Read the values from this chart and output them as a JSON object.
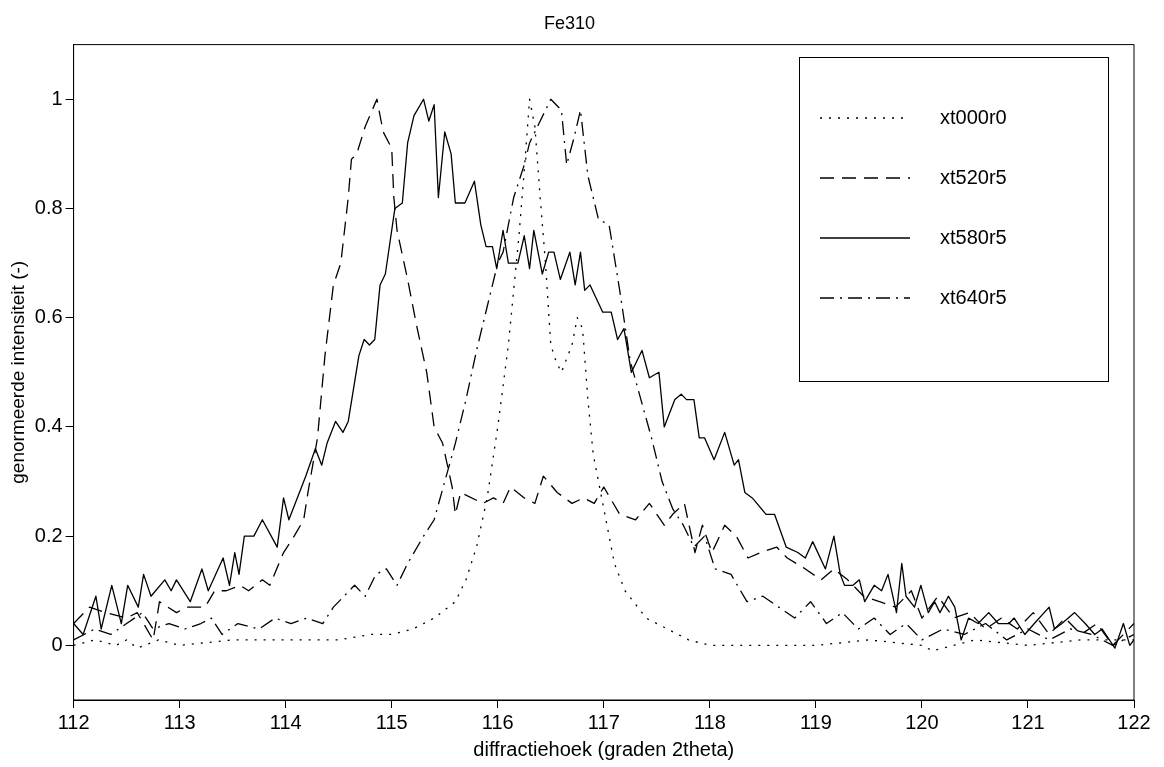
{
  "chart_data": {
    "type": "line",
    "title": "Fe310",
    "xlabel": "diffractiehoek (graden 2theta)",
    "ylabel": "genormeerde intensiteit (-)",
    "xlim": [
      112,
      122
    ],
    "xticks": [
      112,
      113,
      114,
      115,
      116,
      117,
      118,
      119,
      120,
      121,
      122
    ],
    "ylim": [
      -0.1,
      1.1
    ],
    "yticks": [
      0,
      0.2,
      0.4,
      0.6,
      0.8,
      1
    ],
    "grid": false,
    "legend": "top right",
    "marker": "none",
    "series": [
      {
        "name": "xt000r0",
        "color": "#000000",
        "line_style": "dotted",
        "x": [
          112,
          112.2,
          112.4,
          112.5,
          112.6,
          112.8,
          113,
          113.5,
          114,
          114.5,
          114.8,
          115,
          115.2,
          115.4,
          115.6,
          115.7,
          115.8,
          115.9,
          116,
          116.1,
          116.15,
          116.2,
          116.25,
          116.3,
          116.35,
          116.4,
          116.45,
          116.5,
          116.55,
          116.6,
          116.7,
          116.75,
          116.8,
          116.85,
          116.9,
          117,
          117.1,
          117.2,
          117.4,
          117.6,
          117.8,
          118,
          118.5,
          119,
          119.5,
          120,
          120.1,
          120.5,
          121,
          121.5,
          122
        ],
        "values": [
          0,
          0.01,
          0,
          0.01,
          -0.005,
          0.01,
          0,
          0.01,
          0.01,
          0.01,
          0.02,
          0.02,
          0.03,
          0.05,
          0.08,
          0.12,
          0.18,
          0.27,
          0.4,
          0.55,
          0.65,
          0.75,
          0.87,
          1,
          0.95,
          0.82,
          0.7,
          0.55,
          0.52,
          0.5,
          0.55,
          0.6,
          0.58,
          0.45,
          0.35,
          0.25,
          0.15,
          0.1,
          0.05,
          0.03,
          0.01,
          0,
          0,
          0,
          0.01,
          0,
          -0.01,
          0.01,
          0,
          0.01,
          0.01
        ]
      },
      {
        "name": "xt520r5",
        "color": "#000000",
        "line_style": "dashed",
        "x": [
          112,
          112.15,
          112.3,
          112.5,
          112.6,
          112.75,
          112.81,
          112.97,
          113.07,
          113.24,
          113.33,
          113.44,
          113.57,
          113.65,
          113.78,
          113.85,
          113.98,
          114.08,
          114.17,
          114.21,
          114.3,
          114.37,
          114.45,
          114.52,
          114.59,
          114.62,
          114.67,
          114.75,
          114.86,
          114.92,
          115,
          115.02,
          115.05,
          115.15,
          115.23,
          115.33,
          115.4,
          115.48,
          115.57,
          115.6,
          115.65,
          115.86,
          115.96,
          116.05,
          116.12,
          116.25,
          116.35,
          116.43,
          116.56,
          116.7,
          116.81,
          116.91,
          117,
          117.15,
          117.3,
          117.43,
          117.57,
          117.65,
          117.76,
          117.86,
          117.93,
          118.02,
          118.14,
          118.25,
          118.36,
          118.48,
          118.63,
          118.73,
          118.9,
          119.05,
          119.17,
          119.3,
          119.45,
          119.6,
          119.75,
          119.9,
          120,
          120.15,
          120.3,
          120.45,
          120.6,
          120.75,
          120.9,
          121.05,
          121.2,
          121.35,
          121.5,
          121.65,
          121.8,
          122
        ],
        "values": [
          0.04,
          0.07,
          0.06,
          0.05,
          0.06,
          0.01,
          0.08,
          0.06,
          0.07,
          0.07,
          0.1,
          0.1,
          0.11,
          0.1,
          0.12,
          0.11,
          0.17,
          0.2,
          0.23,
          0.28,
          0.38,
          0.53,
          0.66,
          0.7,
          0.82,
          0.89,
          0.9,
          0.95,
          1,
          0.94,
          0.91,
          0.82,
          0.76,
          0.67,
          0.59,
          0.5,
          0.4,
          0.37,
          0.29,
          0.24,
          0.28,
          0.26,
          0.27,
          0.26,
          0.29,
          0.27,
          0.26,
          0.31,
          0.28,
          0.26,
          0.27,
          0.26,
          0.29,
          0.24,
          0.23,
          0.26,
          0.22,
          0.24,
          0.26,
          0.17,
          0.22,
          0.17,
          0.22,
          0.2,
          0.16,
          0.17,
          0.18,
          0.16,
          0.14,
          0.12,
          0.14,
          0.12,
          0.09,
          0.08,
          0.07,
          0.1,
          0.05,
          0.09,
          0.05,
          0.06,
          0.03,
          0.05,
          0.03,
          0.06,
          0.02,
          0.05,
          0.02,
          0.04,
          0,
          0.04
        ]
      },
      {
        "name": "xt580r5",
        "color": "#000000",
        "line_style": "solid",
        "x": [
          112,
          112.09,
          112.21,
          112.26,
          112.36,
          112.45,
          112.51,
          112.61,
          112.66,
          112.73,
          112.86,
          112.92,
          112.97,
          113.1,
          113.21,
          113.27,
          113.41,
          113.47,
          113.52,
          113.56,
          113.61,
          113.7,
          113.78,
          113.92,
          113.98,
          114.03,
          114.19,
          114.28,
          114.34,
          114.39,
          114.47,
          114.54,
          114.59,
          114.69,
          114.74,
          114.79,
          114.84,
          114.89,
          114.94,
          115.03,
          115.1,
          115.15,
          115.21,
          115.3,
          115.35,
          115.4,
          115.44,
          115.5,
          115.56,
          115.6,
          115.69,
          115.78,
          115.84,
          115.89,
          115.95,
          115.99,
          116.05,
          116.1,
          116.19,
          116.25,
          116.3,
          116.34,
          116.42,
          116.48,
          116.53,
          116.59,
          116.68,
          116.73,
          116.78,
          116.82,
          116.87,
          116.99,
          117.07,
          117.13,
          117.19,
          117.26,
          117.36,
          117.43,
          117.52,
          117.57,
          117.67,
          117.73,
          117.78,
          117.85,
          117.9,
          117.95,
          118.04,
          118.14,
          118.23,
          118.27,
          118.33,
          118.4,
          118.53,
          118.61,
          118.72,
          118.83,
          118.9,
          118.97,
          119.09,
          119.17,
          119.23,
          119.27,
          119.35,
          119.41,
          119.46,
          119.55,
          119.62,
          119.68,
          119.76,
          119.81,
          119.85,
          119.93,
          119.99,
          120.06,
          120.12,
          120.17,
          120.25,
          120.31,
          120.37,
          120.44,
          120.53,
          120.63,
          120.72,
          120.82,
          120.87,
          120.97,
          121.06,
          121.2,
          121.25,
          121.32,
          121.44,
          121.54,
          121.63,
          121.7,
          121.82,
          121.9,
          121.96,
          122
        ],
        "values": [
          0.04,
          0.02,
          0.09,
          0.03,
          0.11,
          0.04,
          0.11,
          0.07,
          0.13,
          0.09,
          0.12,
          0.1,
          0.12,
          0.08,
          0.14,
          0.1,
          0.16,
          0.11,
          0.17,
          0.13,
          0.2,
          0.2,
          0.23,
          0.18,
          0.27,
          0.23,
          0.31,
          0.36,
          0.33,
          0.37,
          0.41,
          0.39,
          0.41,
          0.53,
          0.56,
          0.55,
          0.56,
          0.66,
          0.68,
          0.8,
          0.81,
          0.92,
          0.97,
          1,
          0.96,
          0.99,
          0.82,
          0.94,
          0.9,
          0.81,
          0.81,
          0.85,
          0.77,
          0.73,
          0.73,
          0.69,
          0.76,
          0.7,
          0.7,
          0.75,
          0.69,
          0.76,
          0.68,
          0.72,
          0.72,
          0.67,
          0.72,
          0.66,
          0.72,
          0.65,
          0.66,
          0.61,
          0.61,
          0.56,
          0.58,
          0.5,
          0.54,
          0.49,
          0.5,
          0.4,
          0.45,
          0.46,
          0.45,
          0.45,
          0.38,
          0.38,
          0.34,
          0.39,
          0.33,
          0.34,
          0.28,
          0.27,
          0.24,
          0.24,
          0.18,
          0.17,
          0.16,
          0.19,
          0.14,
          0.2,
          0.13,
          0.11,
          0.11,
          0.12,
          0.08,
          0.11,
          0.1,
          0.13,
          0.06,
          0.15,
          0.09,
          0.07,
          0.11,
          0.06,
          0.08,
          0.06,
          0.09,
          0.07,
          0.01,
          0.05,
          0.04,
          0.06,
          0.04,
          0.04,
          0.05,
          0.02,
          0.04,
          0.07,
          0.03,
          0.04,
          0.06,
          0.04,
          0.02,
          0.03,
          -0.005,
          0.04,
          0,
          0.01
        ]
      },
      {
        "name": "xt640r5",
        "color": "#000000",
        "line_style": "dashdot",
        "x": [
          112,
          112.2,
          112.35,
          112.5,
          112.65,
          112.75,
          112.9,
          113.05,
          113.2,
          113.3,
          113.4,
          113.55,
          113.75,
          113.9,
          114.05,
          114.2,
          114.35,
          114.45,
          114.55,
          114.65,
          114.75,
          114.85,
          114.95,
          115.05,
          115.15,
          115.3,
          115.4,
          115.5,
          115.6,
          115.7,
          115.8,
          115.9,
          116,
          116.05,
          116.15,
          116.25,
          116.3,
          116.4,
          116.5,
          116.6,
          116.65,
          116.72,
          116.78,
          116.85,
          116.95,
          117.05,
          117.15,
          117.25,
          117.35,
          117.45,
          117.55,
          117.65,
          117.75,
          117.85,
          117.95,
          118.05,
          118.2,
          118.35,
          118.5,
          118.65,
          118.8,
          118.95,
          119.1,
          119.25,
          119.4,
          119.55,
          119.7,
          119.85,
          120,
          120.2,
          120.4,
          120.6,
          120.8,
          121,
          121.2,
          121.4,
          121.6,
          121.8,
          122
        ],
        "values": [
          0.01,
          0.03,
          0.02,
          0.04,
          0.06,
          0.03,
          0.04,
          0.03,
          0.04,
          0.05,
          0.02,
          0.04,
          0.03,
          0.05,
          0.04,
          0.05,
          0.04,
          0.07,
          0.09,
          0.11,
          0.09,
          0.13,
          0.14,
          0.11,
          0.15,
          0.2,
          0.23,
          0.3,
          0.37,
          0.45,
          0.54,
          0.62,
          0.7,
          0.72,
          0.82,
          0.88,
          0.92,
          0.96,
          1,
          0.98,
          0.88,
          0.93,
          0.98,
          0.86,
          0.78,
          0.77,
          0.65,
          0.52,
          0.45,
          0.38,
          0.3,
          0.25,
          0.22,
          0.18,
          0.2,
          0.14,
          0.13,
          0.08,
          0.09,
          0.07,
          0.05,
          0.08,
          0.04,
          0.06,
          0.03,
          0.05,
          0.02,
          0.04,
          0.01,
          0.03,
          0.02,
          0.04,
          0.01,
          0.03,
          0.01,
          0.03,
          0.02,
          0,
          0.02
        ]
      }
    ]
  }
}
